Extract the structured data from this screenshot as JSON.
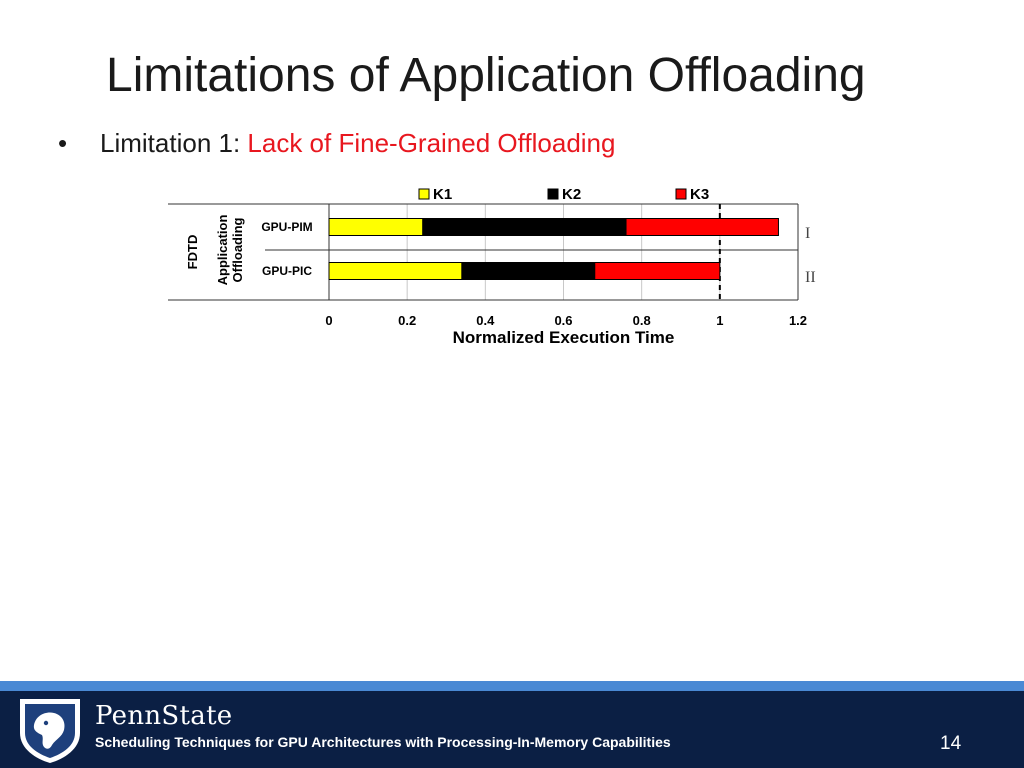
{
  "slide": {
    "title": "Limitations of Application Offloading",
    "bullet_prefix": "Limitation 1: ",
    "bullet_highlight": "Lack of Fine-Grained Offloading"
  },
  "footer": {
    "brand": "PennState",
    "subtitle": "Scheduling Techniques for GPU Architectures with Processing-In-Memory Capabilities",
    "page_number": "14"
  },
  "colors": {
    "accent_red": "#e8171f",
    "footer_navy": "#0b1f44",
    "footer_stripe": "#4a89d4"
  },
  "chart_data": {
    "type": "bar",
    "orientation": "horizontal",
    "stacked": true,
    "group_label": "FDTD",
    "category_group_label": "Application Offloading",
    "categories": [
      "GPU-PIM",
      "GPU-PIC"
    ],
    "row_tags": [
      "I",
      "II"
    ],
    "series": [
      {
        "name": "K1",
        "color": "#ffff00",
        "values": [
          0.24,
          0.34
        ]
      },
      {
        "name": "K2",
        "color": "#000000",
        "values": [
          0.52,
          0.34
        ]
      },
      {
        "name": "K3",
        "color": "#ff0000",
        "values": [
          0.39,
          0.32
        ]
      }
    ],
    "xlabel": "Normalized Execution Time",
    "xlim": [
      0,
      1.2
    ],
    "xticks": [
      "0",
      "0.2",
      "0.4",
      "0.6",
      "0.8",
      "1",
      "1.2"
    ],
    "reference_line": 1,
    "grid": true,
    "legend_position": "top"
  }
}
